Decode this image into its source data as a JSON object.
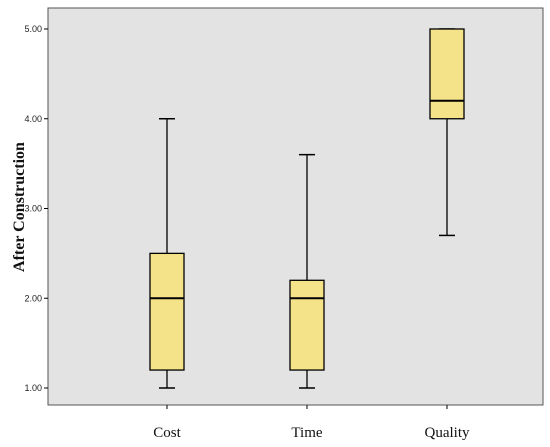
{
  "chart_data": {
    "type": "boxplot",
    "ylabel": "After Construction",
    "xlabel": "",
    "ylim": [
      0.9,
      5.2
    ],
    "yticks": [
      "1.00",
      "2.00",
      "3.00",
      "4.00",
      "5.00"
    ],
    "grid": false,
    "categories": [
      "Cost",
      "Time",
      "Quality"
    ],
    "boxes": [
      {
        "min": 1.0,
        "q1": 1.2,
        "median": 2.0,
        "q3": 2.5,
        "max": 4.0
      },
      {
        "min": 1.0,
        "q1": 1.2,
        "median": 2.0,
        "q3": 2.2,
        "max": 3.6
      },
      {
        "min": 2.7,
        "q1": 4.0,
        "median": 4.2,
        "q3": 5.0,
        "max": 5.0
      }
    ],
    "colors": {
      "plot_background": "#e3e3e3",
      "box_fill": "#f5e38a",
      "stroke": "#000000"
    }
  }
}
